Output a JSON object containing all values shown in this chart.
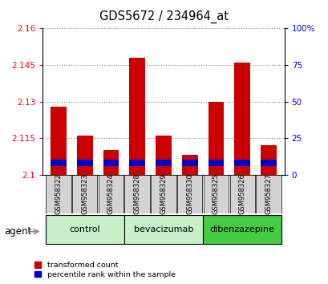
{
  "title": "GDS5672 / 234964_at",
  "samples": [
    "GSM958322",
    "GSM958323",
    "GSM958324",
    "GSM958328",
    "GSM958329",
    "GSM958330",
    "GSM958325",
    "GSM958326",
    "GSM958327"
  ],
  "transformed_count": [
    2.128,
    2.116,
    2.11,
    2.148,
    2.116,
    2.108,
    2.13,
    2.146,
    2.112
  ],
  "groups": [
    {
      "name": "control",
      "indices": [
        0,
        1,
        2
      ],
      "color": "#c8efc8"
    },
    {
      "name": "bevacizumab",
      "indices": [
        3,
        4,
        5
      ],
      "color": "#c8efc8"
    },
    {
      "name": "dibenzazepine",
      "indices": [
        6,
        7,
        8
      ],
      "color": "#44cc44"
    }
  ],
  "ylim_left": [
    2.1,
    2.16
  ],
  "yticks_left": [
    2.1,
    2.115,
    2.13,
    2.145,
    2.16
  ],
  "ylim_right": [
    0,
    100
  ],
  "yticks_right": [
    0,
    25,
    50,
    75,
    100
  ],
  "bar_color_red": "#cc0000",
  "bar_color_blue": "#0000cc",
  "base_value": 2.1,
  "blue_bar_bottom": 2.1035,
  "blue_bar_height": 0.0025,
  "background_color": "#ffffff",
  "grid_color": "#888888"
}
